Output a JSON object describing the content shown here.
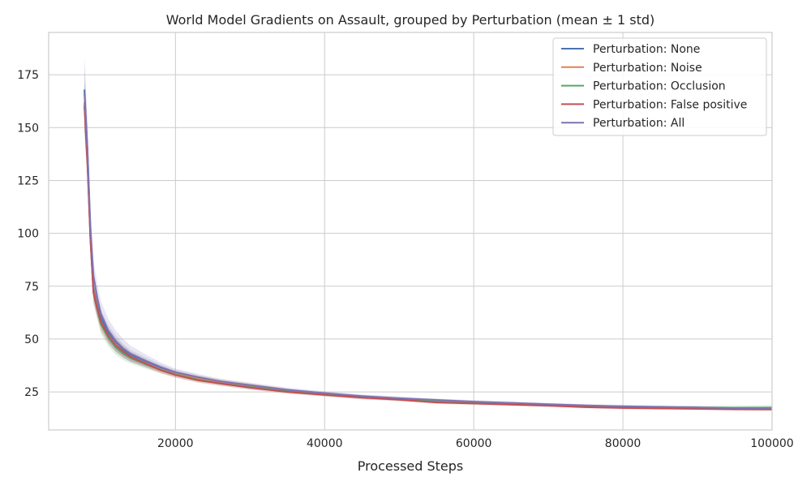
{
  "chart_data": {
    "type": "line",
    "title": "World Model Gradients on Assault, grouped by Perturbation (mean ± 1 std)",
    "xlabel": "Processed Steps",
    "ylabel": "",
    "xlim": [
      3000,
      100000
    ],
    "ylim": [
      7,
      195
    ],
    "x_ticks": [
      20000,
      40000,
      60000,
      80000,
      100000
    ],
    "x_tick_labels": [
      "20000",
      "40000",
      "60000",
      "80000",
      "100000"
    ],
    "y_ticks": [
      25,
      50,
      75,
      100,
      125,
      150,
      175
    ],
    "y_tick_labels": [
      "25",
      "50",
      "75",
      "100",
      "125",
      "150",
      "175"
    ],
    "grid": true,
    "legend_position": "top-right",
    "x": [
      7800,
      8200,
      8600,
      9000,
      9500,
      10000,
      11000,
      12000,
      13000,
      14000,
      16000,
      18000,
      20000,
      23000,
      26000,
      30000,
      35000,
      40000,
      45000,
      50000,
      55000,
      60000,
      65000,
      70000,
      75000,
      80000,
      85000,
      90000,
      95000,
      100000
    ],
    "series": [
      {
        "name": "Perturbation: None",
        "color": "#4c72b0",
        "values": [
          168,
          140,
          100,
          74,
          66,
          60,
          53,
          48.5,
          45,
          42.5,
          39.5,
          36.5,
          34.2,
          31.8,
          29.8,
          27.8,
          25.8,
          24.2,
          22.8,
          21.8,
          21.0,
          20.2,
          19.6,
          19.0,
          18.5,
          18.0,
          17.8,
          17.6,
          17.3,
          17.1
        ],
        "std": [
          12,
          10,
          7,
          5,
          4.5,
          4,
          3.5,
          3,
          2.6,
          2.2,
          1.8,
          1.5,
          1.3,
          1.2,
          1.0,
          1.0,
          0.9,
          0.8,
          0.8,
          0.7,
          0.7,
          0.7,
          0.6,
          0.6,
          0.6,
          0.6,
          0.6,
          0.6,
          0.6,
          0.6
        ]
      },
      {
        "name": "Perturbation: Noise",
        "color": "#dd8452",
        "values": [
          162,
          135,
          98,
          73,
          65,
          58,
          51.5,
          47,
          44,
          41.5,
          38.5,
          35.5,
          33.5,
          31.3,
          29.8,
          28.0,
          25.5,
          23.8,
          22.5,
          21.5,
          20.5,
          19.8,
          19.2,
          18.6,
          18.0,
          17.6,
          17.3,
          17.1,
          16.9,
          16.8
        ],
        "std": [
          11,
          9,
          6,
          5,
          4.5,
          4,
          3.5,
          3,
          2.6,
          2.2,
          1.8,
          1.5,
          1.4,
          1.2,
          1.2,
          1.1,
          1.0,
          0.8,
          0.8,
          0.7,
          0.7,
          0.7,
          0.6,
          0.6,
          0.6,
          0.6,
          0.6,
          0.6,
          0.6,
          0.6
        ]
      },
      {
        "name": "Perturbation: Occlusion",
        "color": "#55a868",
        "values": [
          161,
          134,
          97,
          72,
          64,
          57,
          50.5,
          46,
          43,
          41,
          38,
          35.5,
          33.2,
          30.8,
          29.0,
          27.3,
          25.3,
          23.8,
          22.5,
          21.5,
          20.6,
          19.9,
          19.3,
          18.7,
          18.2,
          17.9,
          17.7,
          17.6,
          17.5,
          17.6
        ],
        "std": [
          11,
          9,
          6,
          5,
          4.5,
          4.5,
          4,
          3.5,
          3,
          2.6,
          2,
          1.6,
          1.4,
          1.2,
          1.1,
          1.0,
          0.9,
          0.8,
          0.8,
          0.7,
          0.7,
          0.7,
          0.7,
          0.7,
          0.7,
          0.7,
          0.8,
          0.9,
          1.0,
          1.2
        ]
      },
      {
        "name": "Perturbation: False positive",
        "color": "#c44e52",
        "values": [
          160,
          133,
          97,
          72,
          64.5,
          58,
          51.5,
          47,
          44,
          41.5,
          38.5,
          35.3,
          33.0,
          30.5,
          29.0,
          27.0,
          25.0,
          23.6,
          22.3,
          21.3,
          20.0,
          19.5,
          19.0,
          18.5,
          17.8,
          17.4,
          17.2,
          17.0,
          16.8,
          16.7
        ],
        "std": [
          11,
          9,
          6,
          5,
          4.5,
          4,
          3.5,
          3,
          2.6,
          2.2,
          1.8,
          1.5,
          1.3,
          1.2,
          1.1,
          1.0,
          0.9,
          0.8,
          0.8,
          0.7,
          0.7,
          0.7,
          0.6,
          0.6,
          0.6,
          0.6,
          0.6,
          0.6,
          0.6,
          0.6
        ]
      },
      {
        "name": "Perturbation: All",
        "color": "#8172b3",
        "values": [
          166,
          140,
          103,
          80,
          70,
          62,
          54,
          49,
          45.5,
          43,
          39.8,
          36.8,
          34.3,
          32.0,
          30.0,
          28.2,
          26.0,
          24.4,
          23.0,
          22.0,
          21.2,
          20.4,
          19.8,
          19.2,
          18.6,
          18.2,
          17.9,
          17.6,
          17.3,
          17.1
        ],
        "std": [
          18,
          14,
          9,
          7,
          6.5,
          6,
          5.5,
          5,
          4.5,
          3.8,
          3,
          2.2,
          1.8,
          1.5,
          1.3,
          1.2,
          1.0,
          0.9,
          0.8,
          0.8,
          0.7,
          0.7,
          0.7,
          0.6,
          0.6,
          0.6,
          0.6,
          0.6,
          0.6,
          0.6
        ]
      }
    ]
  }
}
